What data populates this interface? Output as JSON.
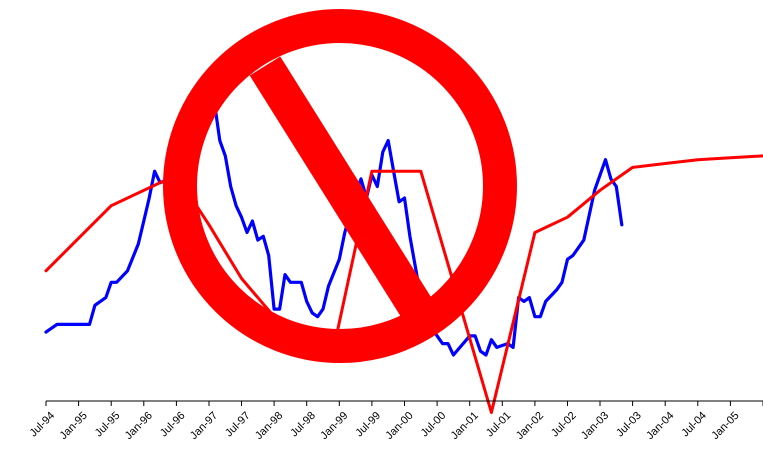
{
  "chart_data": {
    "type": "line",
    "title": "",
    "xlabel": "",
    "ylabel": "",
    "x_tick_labels": [
      "Jul-94",
      "Jan-95",
      "Jul-95",
      "Jan-96",
      "Jul-96",
      "Jan-97",
      "Jul-97",
      "Jan-98",
      "Jul-98",
      "Jan-99",
      "Jul-99",
      "Jan-00",
      "Jul-00",
      "Jan-01",
      "Jul-01",
      "Jan-02",
      "Jul-02",
      "Jan-03",
      "Jul-03",
      "Jan-04",
      "Jul-04",
      "Jan-05"
    ],
    "x_range": [
      "1994-07",
      "2005-07"
    ],
    "y_range": [
      0,
      100
    ],
    "y_axis_visible": false,
    "grid": false,
    "legend": "none",
    "series": [
      {
        "color": "#0000ff",
        "points": [
          [
            "1994-07",
            18
          ],
          [
            "1994-09",
            20
          ],
          [
            "1994-12",
            20
          ],
          [
            "1995-03",
            20
          ],
          [
            "1995-04",
            25
          ],
          [
            "1995-06",
            27
          ],
          [
            "1995-07",
            31
          ],
          [
            "1995-08",
            31
          ],
          [
            "1995-10",
            34
          ],
          [
            "1995-12",
            41
          ],
          [
            "1996-01",
            47
          ],
          [
            "1996-02",
            53
          ],
          [
            "1996-03",
            60
          ],
          [
            "1996-04",
            57
          ],
          [
            "1996-06",
            58
          ],
          [
            "1996-08",
            64
          ],
          [
            "1996-10",
            70
          ],
          [
            "1996-11",
            76
          ],
          [
            "1996-12",
            80
          ],
          [
            "1997-01",
            76
          ],
          [
            "1997-02",
            78
          ],
          [
            "1997-03",
            68
          ],
          [
            "1997-04",
            64
          ],
          [
            "1997-05",
            56
          ],
          [
            "1997-06",
            51
          ],
          [
            "1997-07",
            48
          ],
          [
            "1997-08",
            44
          ],
          [
            "1997-09",
            47
          ],
          [
            "1997-10",
            42
          ],
          [
            "1997-11",
            43
          ],
          [
            "1997-12",
            38
          ],
          [
            "1998-01",
            24
          ],
          [
            "1998-02",
            24
          ],
          [
            "1998-03",
            33
          ],
          [
            "1998-04",
            31
          ],
          [
            "1998-06",
            31
          ],
          [
            "1998-07",
            26
          ],
          [
            "1998-08",
            23
          ],
          [
            "1998-09",
            22
          ],
          [
            "1998-10",
            24
          ],
          [
            "1998-11",
            30
          ],
          [
            "1999-01",
            37
          ],
          [
            "1999-02",
            44
          ],
          [
            "1999-04",
            54
          ],
          [
            "1999-05",
            58
          ],
          [
            "1999-06",
            53
          ],
          [
            "1999-07",
            59
          ],
          [
            "1999-08",
            56
          ],
          [
            "1999-09",
            65
          ],
          [
            "1999-10",
            68
          ],
          [
            "1999-11",
            60
          ],
          [
            "1999-12",
            52
          ],
          [
            "2000-01",
            53
          ],
          [
            "2000-02",
            43
          ],
          [
            "2000-03",
            35
          ],
          [
            "2000-04",
            27
          ],
          [
            "2000-06",
            19
          ],
          [
            "2000-08",
            15
          ],
          [
            "2000-09",
            15
          ],
          [
            "2000-10",
            12
          ],
          [
            "2001-01",
            17
          ],
          [
            "2001-02",
            17
          ],
          [
            "2001-03",
            13
          ],
          [
            "2001-04",
            12
          ],
          [
            "2001-05",
            16
          ],
          [
            "2001-06",
            14
          ],
          [
            "2001-08",
            15
          ],
          [
            "2001-09",
            14
          ],
          [
            "2001-10",
            27
          ],
          [
            "2001-11",
            26
          ],
          [
            "2001-12",
            27
          ],
          [
            "2002-01",
            22
          ],
          [
            "2002-02",
            22
          ],
          [
            "2002-03",
            26
          ],
          [
            "2002-05",
            29
          ],
          [
            "2002-06",
            31
          ],
          [
            "2002-07",
            37
          ],
          [
            "2002-08",
            38
          ],
          [
            "2002-10",
            42
          ],
          [
            "2002-12",
            55
          ],
          [
            "2003-02",
            63
          ],
          [
            "2003-03",
            58
          ],
          [
            "2003-04",
            56
          ],
          [
            "2003-05",
            46
          ]
        ]
      },
      {
        "color": "#ff0000",
        "points": [
          [
            "1994-07",
            34
          ],
          [
            "1995-07",
            51
          ],
          [
            "1996-07",
            59
          ],
          [
            "1997-01",
            46
          ],
          [
            "1997-07",
            32
          ],
          [
            "1998-01",
            22
          ],
          [
            "1998-07",
            15
          ],
          [
            "1998-12",
            14
          ],
          [
            "1999-07",
            60
          ],
          [
            "1999-08",
            60
          ],
          [
            "2000-04",
            60
          ],
          [
            "2001-05",
            -3
          ],
          [
            "2002-01",
            44
          ],
          [
            "2002-07",
            48
          ],
          [
            "2003-01",
            55
          ],
          [
            "2003-07",
            61
          ],
          [
            "2004-01",
            62
          ],
          [
            "2004-07",
            63
          ],
          [
            "2005-01",
            63.5
          ],
          [
            "2005-07",
            64
          ]
        ]
      }
    ],
    "overlay_symbol": "prohibition-sign"
  },
  "colors": {
    "blue_series": "#0000ff",
    "red_series": "#ff0000",
    "prohibition_sign": "#ff0000",
    "axis": "#000000"
  }
}
